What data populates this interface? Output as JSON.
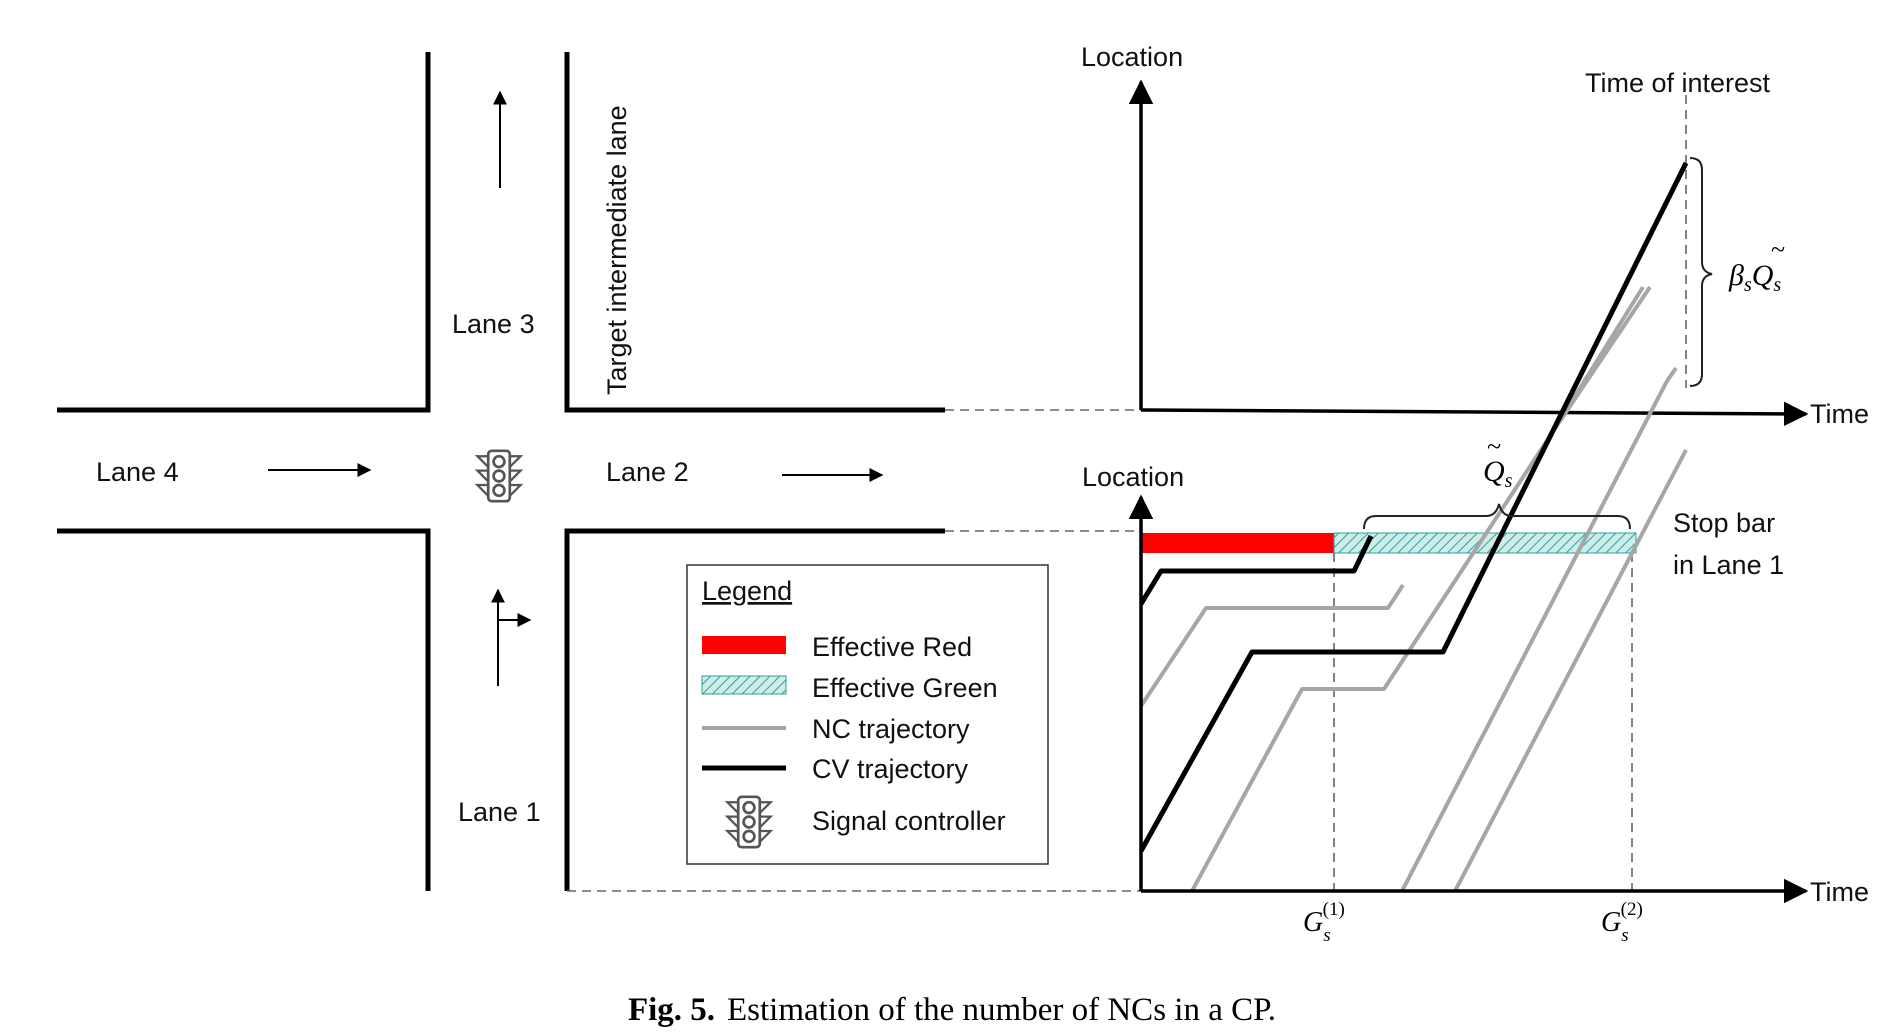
{
  "intersection": {
    "lane_labels": {
      "lane1": "Lane 1",
      "lane2": "Lane 2",
      "lane3": "Lane 3",
      "lane4": "Lane 4"
    },
    "target_lane_label": "Target intermediate lane",
    "signal_icon": "traffic-light-icon",
    "movement_icons": [
      "up-arrow-icon",
      "right-arrow-icon",
      "through-right-arrow-icon"
    ]
  },
  "top_plot": {
    "y_axis_label": "Location",
    "x_axis_label": "Time",
    "time_of_interest_label": "Time of interest",
    "bracket_label": {
      "beta": "β",
      "sub": "s",
      "q": "Q",
      "tilde": "~"
    }
  },
  "bottom_plot": {
    "y_axis_label": "Location",
    "x_axis_label": "Time",
    "stop_bar_label_line1": "Stop bar",
    "stop_bar_label_line2": "in Lane 1",
    "queue_label": {
      "q": "Q",
      "tilde": "~",
      "sub": "s"
    },
    "g1_label": {
      "base": "G",
      "sub": "s",
      "sup": "(1)"
    },
    "g2_label": {
      "base": "G",
      "sub": "s",
      "sup": "(2)"
    }
  },
  "legend": {
    "title": "Legend",
    "items": [
      {
        "label": "Effective Red",
        "type": "red-bar"
      },
      {
        "label": "Effective Green",
        "type": "green-hatched-bar"
      },
      {
        "label": "NC trajectory",
        "type": "gray-line"
      },
      {
        "label": "CV trajectory",
        "type": "black-line"
      },
      {
        "label": "Signal controller",
        "type": "traffic-light-icon"
      }
    ]
  },
  "caption": {
    "prefix": "Fig. 5.",
    "text": "Estimation of the number of NCs in a CP."
  },
  "colors": {
    "effective_red": "#ff0000",
    "effective_green_fill": "#cfece8",
    "effective_green_hatch": "#2aa398",
    "nc_trajectory": "#a6a6a6",
    "cv_trajectory": "#000000"
  }
}
